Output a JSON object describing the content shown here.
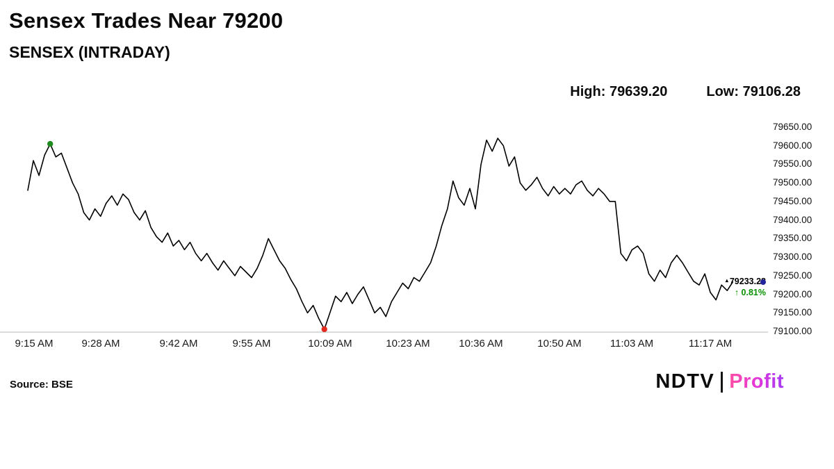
{
  "page": {
    "background": "#ffffff"
  },
  "header": {
    "title": "Sensex Trades Near 79200",
    "subtitle": "SENSEX (INTRADAY)",
    "high_label": "High: 79639.20",
    "low_label": "Low: 79106.28"
  },
  "chart_data": {
    "type": "line",
    "title": "SENSEX (INTRADAY)",
    "ylim": [
      79100,
      79650
    ],
    "high": 79639.2,
    "low": 79106.28,
    "last_value": 79233.28,
    "line_color": "#000000",
    "axis_color": "#b5b5b5",
    "grid": false,
    "legend": false,
    "y_tick_labels": [
      "79650.00",
      "79600.00",
      "79550.00",
      "79500.00",
      "79450.00",
      "79400.00",
      "79350.00",
      "79300.00",
      "79250.00",
      "79200.00",
      "79150.00",
      "79100.00"
    ],
    "x_tick_labels": [
      "9:15 AM",
      "9:28 AM",
      "9:42 AM",
      "9:55 AM",
      "10:09 AM",
      "10:23 AM",
      "10:36 AM",
      "10:50 AM",
      "11:03 AM",
      "11:17 AM"
    ],
    "x_tick_minutes": [
      0,
      13,
      27,
      40,
      54,
      68,
      81,
      95,
      108,
      122
    ],
    "x_start_time": "9:15 AM",
    "values": [
      79480,
      79560,
      79520,
      79575,
      79605,
      79570,
      79580,
      79540,
      79500,
      79470,
      79420,
      79400,
      79430,
      79410,
      79445,
      79465,
      79440,
      79470,
      79455,
      79420,
      79400,
      79425,
      79380,
      79355,
      79340,
      79365,
      79330,
      79345,
      79320,
      79340,
      79310,
      79290,
      79310,
      79285,
      79265,
      79290,
      79270,
      79250,
      79275,
      79260,
      79245,
      79270,
      79305,
      79350,
      79320,
      79290,
      79270,
      79240,
      79215,
      79180,
      79150,
      79170,
      79135,
      79106,
      79150,
      79195,
      79180,
      79205,
      79175,
      79200,
      79220,
      79185,
      79150,
      79165,
      79140,
      79180,
      79205,
      79230,
      79215,
      79245,
      79235,
      79260,
      79285,
      79330,
      79385,
      79430,
      79505,
      79460,
      79440,
      79485,
      79430,
      79550,
      79615,
      79585,
      79620,
      79600,
      79545,
      79570,
      79500,
      79480,
      79495,
      79515,
      79485,
      79465,
      79490,
      79470,
      79485,
      79470,
      79495,
      79505,
      79480,
      79465,
      79485,
      79470,
      79450,
      79450,
      79310,
      79290,
      79320,
      79330,
      79310,
      79255,
      79235,
      79265,
      79245,
      79285,
      79305,
      79285,
      79260,
      79235,
      79225,
      79255,
      79205,
      79185,
      79225,
      79210,
      79233
    ],
    "markers": {
      "open_peak": {
        "index": 4,
        "color": "#1f8a1f"
      },
      "session_low": {
        "index": 53,
        "color": "#e22a1d"
      },
      "line_end": {
        "color": "#24249c"
      }
    }
  },
  "annotation": {
    "marker_glyph": "▴",
    "last_price": "79233.28",
    "arrow": "↑",
    "change": "0.81%",
    "change_color": "#089000"
  },
  "footer": {
    "source": "Source: BSE",
    "logo": {
      "ndtv": "NDTV",
      "divider": "|",
      "profit": "Profit",
      "profit_gradient": [
        "#ff4fa3",
        "#e435d8",
        "#a43bf5"
      ]
    }
  }
}
